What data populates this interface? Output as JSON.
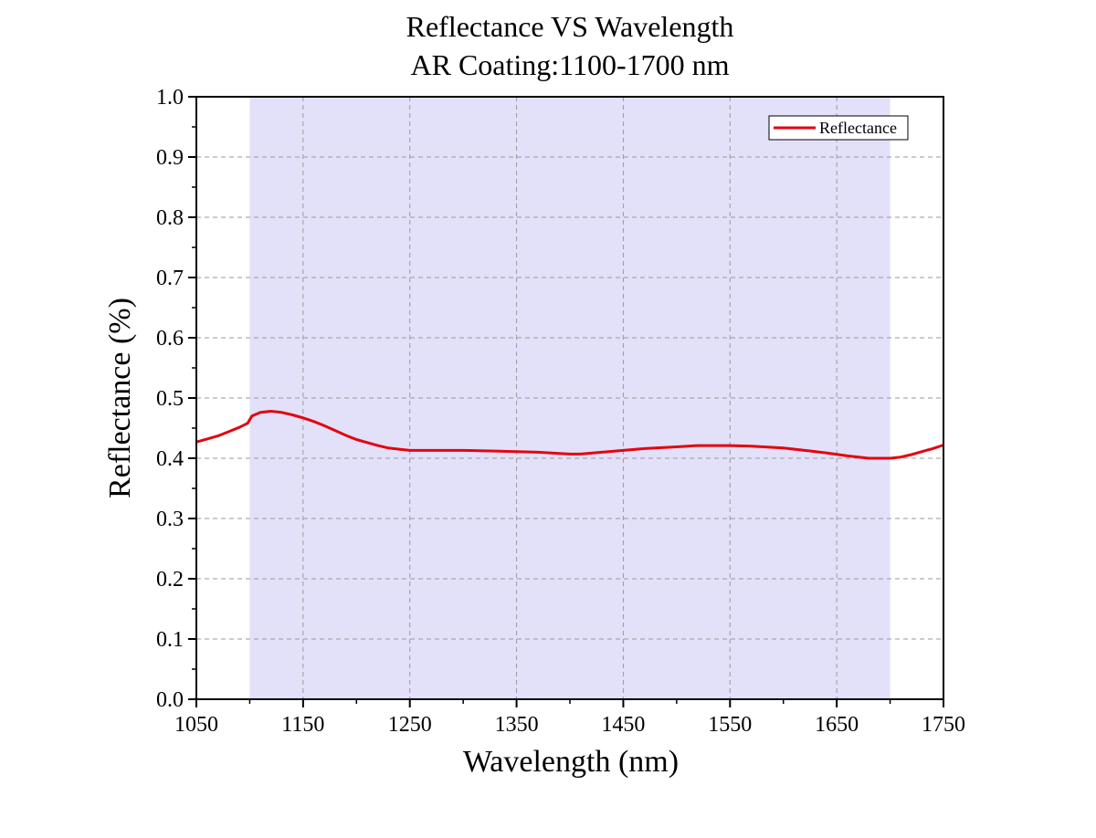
{
  "chart_data": {
    "type": "line",
    "title": "Reflectance VS Wavelength",
    "subtitle": "AR Coating:1100-1700 nm",
    "xlabel": "Wavelength (nm)",
    "ylabel": "Reflectance (%)",
    "xlim": [
      1050,
      1750
    ],
    "ylim": [
      0.0,
      1.0
    ],
    "x_ticks": [
      1050,
      1150,
      1250,
      1350,
      1450,
      1550,
      1650,
      1750
    ],
    "y_ticks": [
      "0.0",
      "0.1",
      "0.2",
      "0.3",
      "0.4",
      "0.5",
      "0.6",
      "0.7",
      "0.8",
      "0.9",
      "1.0"
    ],
    "grid": true,
    "legend_position": "top-right",
    "highlight_band": {
      "x_start": 1100,
      "x_end": 1700,
      "color": "#e3e0fa"
    },
    "series": [
      {
        "name": "Reflectance",
        "color": "#e3060f",
        "x": [
          1050,
          1060,
          1070,
          1080,
          1090,
          1098,
          1102,
          1110,
          1120,
          1130,
          1140,
          1150,
          1160,
          1170,
          1180,
          1190,
          1200,
          1210,
          1220,
          1230,
          1240,
          1250,
          1270,
          1300,
          1330,
          1350,
          1370,
          1390,
          1400,
          1410,
          1430,
          1450,
          1470,
          1500,
          1520,
          1550,
          1570,
          1600,
          1620,
          1640,
          1660,
          1680,
          1700,
          1710,
          1720,
          1730,
          1740,
          1750
        ],
        "y": [
          0.427,
          0.432,
          0.437,
          0.444,
          0.451,
          0.458,
          0.47,
          0.476,
          0.478,
          0.476,
          0.472,
          0.467,
          0.461,
          0.454,
          0.446,
          0.438,
          0.431,
          0.426,
          0.421,
          0.417,
          0.415,
          0.413,
          0.413,
          0.413,
          0.412,
          0.411,
          0.41,
          0.408,
          0.407,
          0.407,
          0.41,
          0.413,
          0.416,
          0.419,
          0.421,
          0.421,
          0.42,
          0.417,
          0.413,
          0.409,
          0.404,
          0.4,
          0.4,
          0.402,
          0.406,
          0.411,
          0.416,
          0.422
        ]
      }
    ]
  }
}
